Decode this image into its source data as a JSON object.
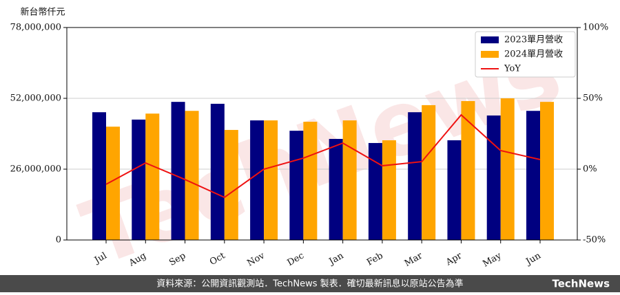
{
  "chart_data": {
    "type": "bar-line",
    "y_label": "新台幣仟元",
    "categories": [
      "Jul",
      "Aug",
      "Sep",
      "Oct",
      "Nov",
      "Dec",
      "Jan",
      "Feb",
      "Mar",
      "Apr",
      "May",
      "Jun"
    ],
    "series": [
      {
        "name": "2023單月營收",
        "color": "#000080",
        "type": "bar",
        "values": [
          46900000,
          44200000,
          50700000,
          50000000,
          43900000,
          40100000,
          37100000,
          35600000,
          46900000,
          36600000,
          45700000,
          47400000
        ]
      },
      {
        "name": "2024單月營收",
        "color": "#ffa500",
        "type": "bar",
        "values": [
          41600000,
          46400000,
          47400000,
          40400000,
          43900000,
          43400000,
          43900000,
          36600000,
          49500000,
          51000000,
          52000000,
          50700000
        ]
      },
      {
        "name": "YoY",
        "color": "#ee1111",
        "type": "line",
        "axis": "y2",
        "values": [
          -10.7,
          4.4,
          -7.3,
          -19.9,
          0,
          7.8,
          18.4,
          2.4,
          5.3,
          38.3,
          13.1,
          6.8
        ]
      }
    ],
    "ylim": [
      0,
      78000000
    ],
    "yticks": [
      {
        "value": 0,
        "label": "0"
      },
      {
        "value": 26000000,
        "label": "26,000,000"
      },
      {
        "value": 52000000,
        "label": "52,000,000"
      },
      {
        "value": 78000000,
        "label": "78,000,000"
      }
    ],
    "y2lim": [
      -50,
      100
    ],
    "y2ticks": [
      {
        "value": -50,
        "label": "-50%"
      },
      {
        "value": 0,
        "label": "0%"
      },
      {
        "value": 50,
        "label": "50%"
      },
      {
        "value": 100,
        "label": "100%"
      }
    ],
    "grid": true,
    "legend": "upper right",
    "watermark": "TechNews",
    "footer": "資料來源：公開資訊觀測站．TechNews 製表．確切最新訊息以原站公告為準",
    "logo": "TechNews"
  }
}
